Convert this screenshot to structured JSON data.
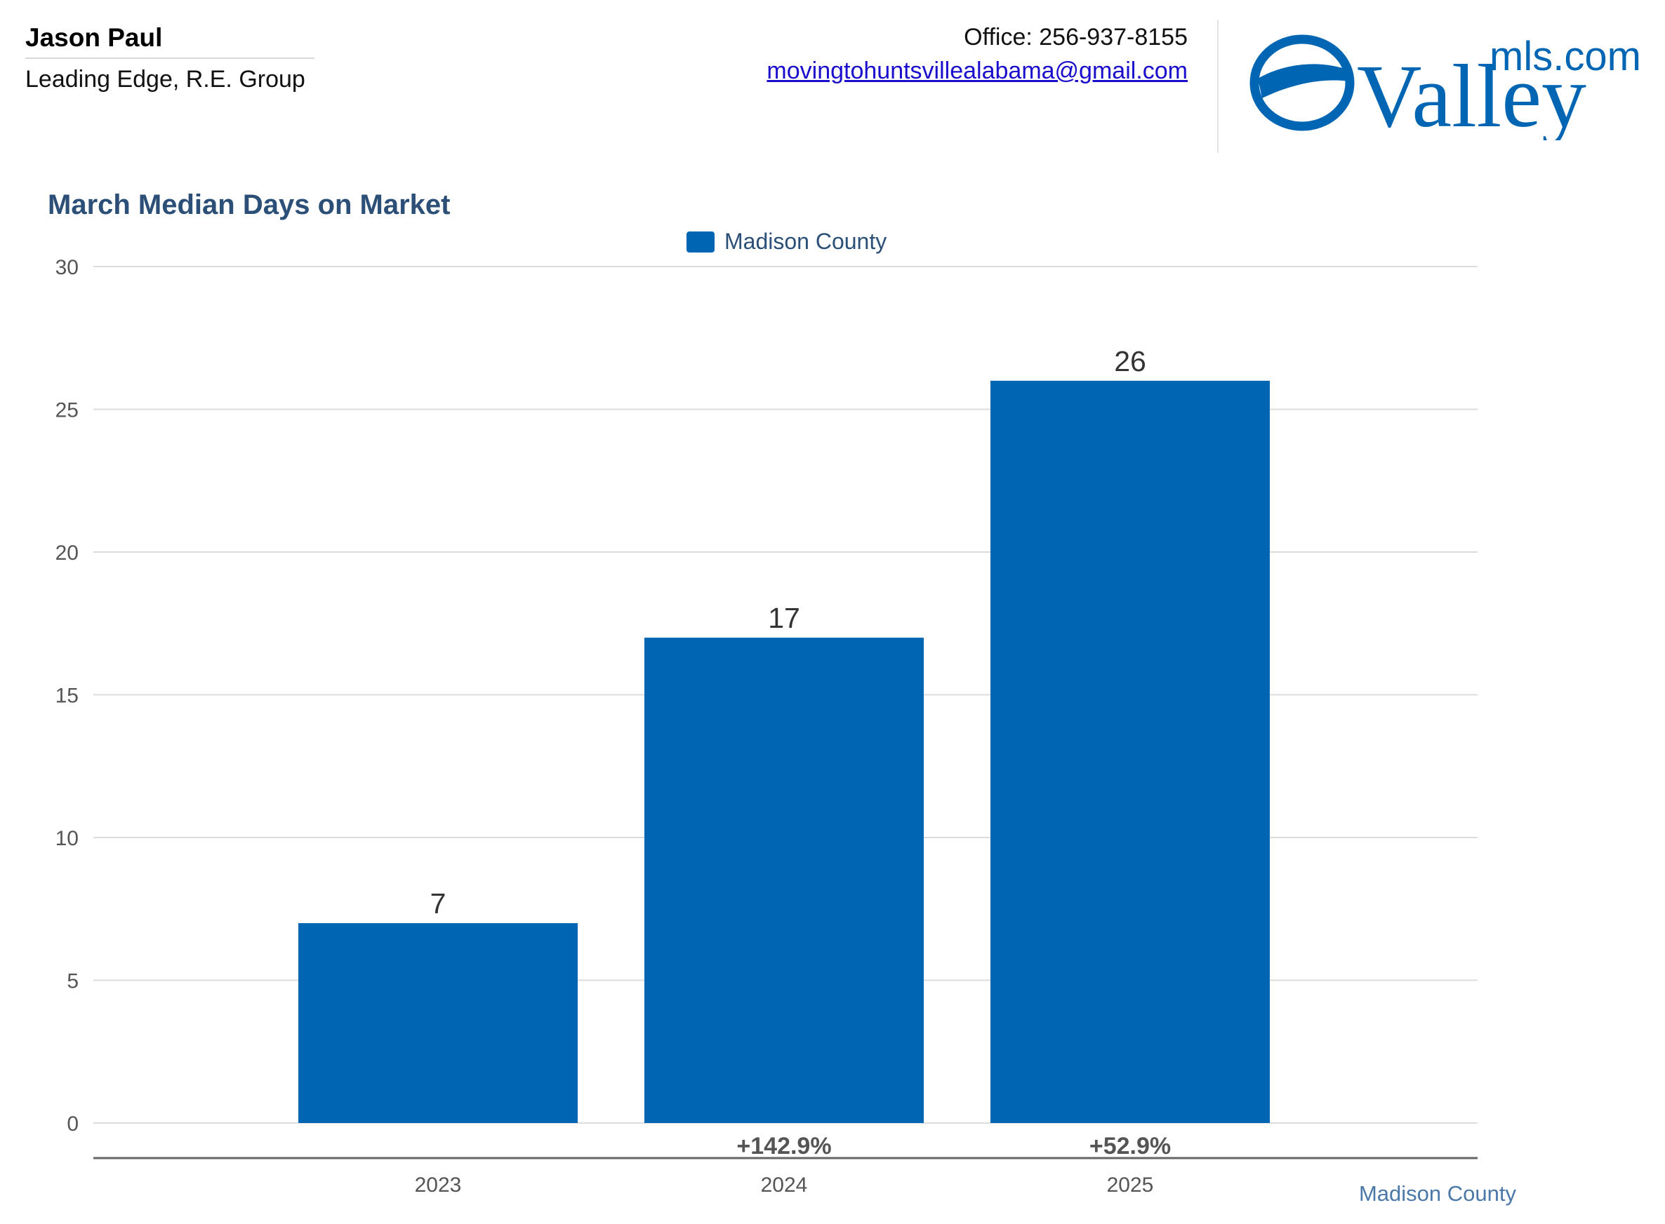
{
  "agent": {
    "name": "Jason Paul",
    "company": "Leading Edge, R.E. Group"
  },
  "contact": {
    "phone": "Office: 256-937-8155",
    "email": "movingtohuntsvillealabama@gmail.com"
  },
  "logo": {
    "text_main": "Valley",
    "text_sub": "mls.com",
    "color": "#0066b3"
  },
  "footer": {
    "label": "Madison County"
  },
  "colors": {
    "bar": "#0066b3",
    "title": "#2b4f76",
    "grid": "#dcdcdc"
  },
  "chart_data": {
    "type": "bar",
    "title": "March Median Days on Market",
    "xlabel": "",
    "ylabel": "",
    "categories": [
      "2023",
      "2024",
      "2025"
    ],
    "series": [
      {
        "name": "Madison County",
        "values": [
          7,
          17,
          26
        ]
      }
    ],
    "change_labels": [
      "",
      "+142.9%",
      "+52.9%"
    ],
    "ylim": [
      0,
      30
    ],
    "yticks": [
      0,
      5,
      10,
      15,
      20,
      25,
      30
    ],
    "grid": true,
    "legend": "top-center"
  }
}
